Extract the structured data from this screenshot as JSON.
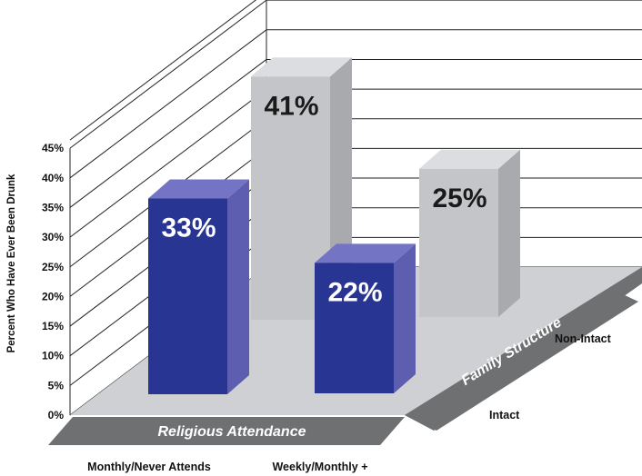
{
  "chart_data": {
    "type": "bar",
    "ylabel": "Percent Who Have Ever Been Drunk",
    "ylim": [
      0,
      45
    ],
    "y_ticks": [
      "0%",
      "5%",
      "10%",
      "15%",
      "20%",
      "25%",
      "30%",
      "35%",
      "40%",
      "45%"
    ],
    "x_axis_title": "Religious Attendance",
    "categories": [
      "Monthly/Never Attends",
      "Weekly/Monthly +"
    ],
    "depth_axis_title": "Family Structure",
    "series": [
      {
        "name": "Intact",
        "values": [
          33,
          22
        ],
        "labels": [
          "33%",
          "22%"
        ]
      },
      {
        "name": "Non-Intact",
        "values": [
          41,
          25
        ],
        "labels": [
          "41%",
          "25%"
        ]
      }
    ],
    "grid": true,
    "colors": {
      "intact_front": "#283593",
      "intact_side": "#5e5eb0",
      "intact_top": "#7474c4",
      "intact_text": "#ffffff",
      "nonintact_front": "#c4c5c8",
      "nonintact_side": "#a9aaad",
      "nonintact_top": "#dcdde0",
      "nonintact_text": "#1a1a1a",
      "floor": "#cfd0d3",
      "band": "#6f7072",
      "grid": "#222222"
    }
  }
}
